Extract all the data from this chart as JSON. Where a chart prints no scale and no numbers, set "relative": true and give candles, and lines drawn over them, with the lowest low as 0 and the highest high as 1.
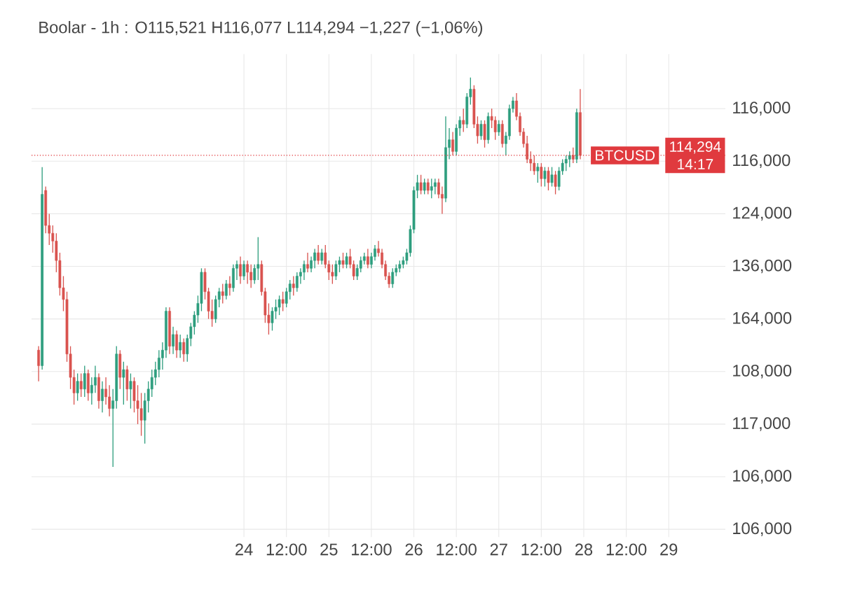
{
  "chart_data": {
    "type": "candlestick",
    "relative": true,
    "title": "Boolar - 1h : O115,521 H116,077 L114,294 −1,227 (−1,06%)",
    "categories": [
      null,
      null,
      null,
      null,
      null,
      null,
      null,
      null,
      null,
      null,
      null,
      null,
      null,
      null,
      null,
      null,
      null,
      null,
      null,
      null,
      null,
      null,
      null,
      null,
      null,
      null,
      null,
      null,
      null,
      null,
      null,
      null,
      null,
      null,
      null,
      null,
      null,
      null,
      null,
      null,
      null,
      null,
      null,
      null,
      null,
      null,
      null,
      null,
      null,
      null,
      null,
      null,
      null,
      null,
      null,
      null,
      null,
      null,
      "24",
      null,
      null,
      null,
      null,
      null,
      null,
      null,
      null,
      null,
      null,
      null,
      "12:00",
      null,
      null,
      null,
      null,
      null,
      null,
      null,
      null,
      null,
      null,
      null,
      "25",
      null,
      null,
      null,
      null,
      null,
      null,
      null,
      null,
      null,
      null,
      null,
      "12:00",
      null,
      null,
      null,
      null,
      null,
      null,
      null,
      null,
      null,
      null,
      null,
      "26",
      null,
      null,
      null,
      null,
      null,
      null,
      null,
      null,
      null,
      null,
      null,
      "12:00",
      null,
      null,
      null,
      null,
      null,
      null,
      null,
      null,
      null,
      null,
      null,
      "27",
      null,
      null,
      null,
      null,
      null,
      null,
      null,
      null,
      null,
      null,
      null,
      "12:00",
      null,
      null,
      null,
      null,
      null,
      null,
      null,
      null,
      null,
      null,
      null,
      "28",
      null,
      null,
      null,
      null,
      null,
      null,
      null,
      null,
      null,
      null,
      null,
      "12:00",
      null,
      null,
      null,
      null,
      null,
      null,
      null,
      null,
      null,
      null,
      null,
      "29"
    ],
    "ohlc": [
      [
        0.3,
        0.31,
        0.22,
        0.26
      ],
      [
        0.26,
        0.77,
        0.25,
        0.7
      ],
      [
        0.71,
        0.72,
        0.6,
        0.62
      ],
      [
        0.62,
        0.65,
        0.57,
        0.6
      ],
      [
        0.6,
        0.62,
        0.55,
        0.58
      ],
      [
        0.58,
        0.6,
        0.5,
        0.53
      ],
      [
        0.53,
        0.55,
        0.44,
        0.46
      ],
      [
        0.46,
        0.49,
        0.4,
        0.43
      ],
      [
        0.43,
        0.45,
        0.27,
        0.29
      ],
      [
        0.29,
        0.31,
        0.2,
        0.23
      ],
      [
        0.23,
        0.25,
        0.16,
        0.19
      ],
      [
        0.19,
        0.24,
        0.17,
        0.22
      ],
      [
        0.22,
        0.24,
        0.18,
        0.2
      ],
      [
        0.2,
        0.26,
        0.18,
        0.24
      ],
      [
        0.24,
        0.25,
        0.17,
        0.19
      ],
      [
        0.19,
        0.23,
        0.16,
        0.21
      ],
      [
        0.21,
        0.26,
        0.19,
        0.23
      ],
      [
        0.23,
        0.24,
        0.15,
        0.17
      ],
      [
        0.17,
        0.22,
        0.14,
        0.2
      ],
      [
        0.2,
        0.23,
        0.16,
        0.18
      ],
      [
        0.18,
        0.21,
        0.13,
        0.15
      ],
      [
        0.15,
        0.2,
        0.0,
        0.17
      ],
      [
        0.17,
        0.31,
        0.15,
        0.29
      ],
      [
        0.29,
        0.3,
        0.2,
        0.23
      ],
      [
        0.23,
        0.27,
        0.16,
        0.25
      ],
      [
        0.25,
        0.26,
        0.17,
        0.2
      ],
      [
        0.2,
        0.24,
        0.15,
        0.22
      ],
      [
        0.22,
        0.23,
        0.14,
        0.17
      ],
      [
        0.17,
        0.21,
        0.11,
        0.15
      ],
      [
        0.15,
        0.19,
        0.08,
        0.12
      ],
      [
        0.12,
        0.19,
        0.06,
        0.17
      ],
      [
        0.17,
        0.22,
        0.14,
        0.2
      ],
      [
        0.2,
        0.25,
        0.18,
        0.23
      ],
      [
        0.23,
        0.27,
        0.21,
        0.25
      ],
      [
        0.25,
        0.3,
        0.23,
        0.28
      ],
      [
        0.28,
        0.32,
        0.25,
        0.3
      ],
      [
        0.3,
        0.41,
        0.28,
        0.4
      ],
      [
        0.4,
        0.41,
        0.29,
        0.31
      ],
      [
        0.31,
        0.36,
        0.29,
        0.34
      ],
      [
        0.34,
        0.35,
        0.28,
        0.3
      ],
      [
        0.3,
        0.34,
        0.28,
        0.32
      ],
      [
        0.32,
        0.33,
        0.27,
        0.29
      ],
      [
        0.29,
        0.34,
        0.27,
        0.33
      ],
      [
        0.33,
        0.37,
        0.31,
        0.36
      ],
      [
        0.36,
        0.4,
        0.34,
        0.39
      ],
      [
        0.39,
        0.44,
        0.37,
        0.42
      ],
      [
        0.42,
        0.51,
        0.4,
        0.5
      ],
      [
        0.5,
        0.51,
        0.43,
        0.45
      ],
      [
        0.45,
        0.46,
        0.38,
        0.4
      ],
      [
        0.4,
        0.43,
        0.36,
        0.38
      ],
      [
        0.38,
        0.44,
        0.37,
        0.43
      ],
      [
        0.43,
        0.46,
        0.41,
        0.45
      ],
      [
        0.45,
        0.47,
        0.42,
        0.44
      ],
      [
        0.44,
        0.48,
        0.43,
        0.47
      ],
      [
        0.47,
        0.49,
        0.44,
        0.46
      ],
      [
        0.46,
        0.52,
        0.45,
        0.51
      ],
      [
        0.51,
        0.53,
        0.48,
        0.52
      ],
      [
        0.52,
        0.54,
        0.47,
        0.49
      ],
      [
        0.49,
        0.53,
        0.48,
        0.52
      ],
      [
        0.52,
        0.53,
        0.47,
        0.5
      ],
      [
        0.5,
        0.52,
        0.46,
        0.48
      ],
      [
        0.48,
        0.52,
        0.47,
        0.51
      ],
      [
        0.51,
        0.59,
        0.48,
        0.52
      ],
      [
        0.52,
        0.53,
        0.44,
        0.45
      ],
      [
        0.45,
        0.46,
        0.37,
        0.39
      ],
      [
        0.39,
        0.42,
        0.34,
        0.37
      ],
      [
        0.37,
        0.41,
        0.35,
        0.4
      ],
      [
        0.4,
        0.43,
        0.38,
        0.41
      ],
      [
        0.41,
        0.44,
        0.39,
        0.43
      ],
      [
        0.43,
        0.45,
        0.4,
        0.42
      ],
      [
        0.42,
        0.46,
        0.41,
        0.45
      ],
      [
        0.45,
        0.48,
        0.43,
        0.47
      ],
      [
        0.47,
        0.49,
        0.44,
        0.46
      ],
      [
        0.46,
        0.5,
        0.45,
        0.49
      ],
      [
        0.49,
        0.51,
        0.47,
        0.5
      ],
      [
        0.5,
        0.53,
        0.48,
        0.52
      ],
      [
        0.52,
        0.55,
        0.5,
        0.51
      ],
      [
        0.51,
        0.54,
        0.5,
        0.53
      ],
      [
        0.53,
        0.56,
        0.51,
        0.55
      ],
      [
        0.55,
        0.57,
        0.52,
        0.53
      ],
      [
        0.53,
        0.56,
        0.52,
        0.55
      ],
      [
        0.55,
        0.57,
        0.51,
        0.52
      ],
      [
        0.52,
        0.53,
        0.48,
        0.5
      ],
      [
        0.5,
        0.52,
        0.47,
        0.49
      ],
      [
        0.49,
        0.53,
        0.48,
        0.52
      ],
      [
        0.52,
        0.54,
        0.5,
        0.53
      ],
      [
        0.53,
        0.55,
        0.51,
        0.52
      ],
      [
        0.52,
        0.55,
        0.51,
        0.54
      ],
      [
        0.54,
        0.56,
        0.51,
        0.52
      ],
      [
        0.52,
        0.53,
        0.48,
        0.49
      ],
      [
        0.49,
        0.52,
        0.48,
        0.51
      ],
      [
        0.51,
        0.54,
        0.5,
        0.53
      ],
      [
        0.53,
        0.55,
        0.52,
        0.54
      ],
      [
        0.54,
        0.56,
        0.51,
        0.52
      ],
      [
        0.52,
        0.55,
        0.51,
        0.54
      ],
      [
        0.54,
        0.57,
        0.53,
        0.56
      ],
      [
        0.56,
        0.58,
        0.54,
        0.55
      ],
      [
        0.55,
        0.56,
        0.51,
        0.52
      ],
      [
        0.52,
        0.53,
        0.48,
        0.49
      ],
      [
        0.49,
        0.5,
        0.46,
        0.47
      ],
      [
        0.47,
        0.51,
        0.46,
        0.5
      ],
      [
        0.5,
        0.52,
        0.49,
        0.51
      ],
      [
        0.51,
        0.53,
        0.5,
        0.52
      ],
      [
        0.52,
        0.54,
        0.51,
        0.53
      ],
      [
        0.53,
        0.56,
        0.52,
        0.55
      ],
      [
        0.55,
        0.62,
        0.54,
        0.61
      ],
      [
        0.61,
        0.72,
        0.6,
        0.71
      ],
      [
        0.71,
        0.75,
        0.69,
        0.73
      ],
      [
        0.73,
        0.75,
        0.7,
        0.71
      ],
      [
        0.71,
        0.74,
        0.7,
        0.73
      ],
      [
        0.73,
        0.74,
        0.7,
        0.71
      ],
      [
        0.71,
        0.74,
        0.69,
        0.72
      ],
      [
        0.72,
        0.74,
        0.7,
        0.73
      ],
      [
        0.73,
        0.74,
        0.69,
        0.7
      ],
      [
        0.7,
        0.72,
        0.65,
        0.69
      ],
      [
        0.69,
        0.9,
        0.68,
        0.82
      ],
      [
        0.82,
        0.87,
        0.79,
        0.84
      ],
      [
        0.84,
        0.86,
        0.8,
        0.81
      ],
      [
        0.81,
        0.88,
        0.8,
        0.87
      ],
      [
        0.87,
        0.9,
        0.85,
        0.89
      ],
      [
        0.89,
        0.92,
        0.86,
        0.88
      ],
      [
        0.88,
        0.96,
        0.87,
        0.95
      ],
      [
        0.95,
        1.0,
        0.93,
        0.97
      ],
      [
        0.97,
        0.98,
        0.87,
        0.88
      ],
      [
        0.88,
        0.9,
        0.83,
        0.85
      ],
      [
        0.85,
        0.89,
        0.84,
        0.88
      ],
      [
        0.88,
        0.89,
        0.82,
        0.84
      ],
      [
        0.84,
        0.91,
        0.83,
        0.9
      ],
      [
        0.9,
        0.92,
        0.87,
        0.89
      ],
      [
        0.89,
        0.9,
        0.84,
        0.86
      ],
      [
        0.86,
        0.89,
        0.85,
        0.88
      ],
      [
        0.88,
        0.89,
        0.82,
        0.83
      ],
      [
        0.83,
        0.86,
        0.8,
        0.85
      ],
      [
        0.85,
        0.93,
        0.84,
        0.92
      ],
      [
        0.92,
        0.95,
        0.91,
        0.94
      ],
      [
        0.94,
        0.96,
        0.89,
        0.9
      ],
      [
        0.9,
        0.91,
        0.85,
        0.86
      ],
      [
        0.86,
        0.87,
        0.82,
        0.83
      ],
      [
        0.83,
        0.85,
        0.78,
        0.79
      ],
      [
        0.79,
        0.81,
        0.76,
        0.78
      ],
      [
        0.78,
        0.8,
        0.75,
        0.76
      ],
      [
        0.76,
        0.78,
        0.73,
        0.77
      ],
      [
        0.77,
        0.78,
        0.72,
        0.74
      ],
      [
        0.74,
        0.77,
        0.72,
        0.76
      ],
      [
        0.76,
        0.77,
        0.71,
        0.73
      ],
      [
        0.73,
        0.77,
        0.72,
        0.75
      ],
      [
        0.75,
        0.76,
        0.7,
        0.72
      ],
      [
        0.72,
        0.77,
        0.71,
        0.76
      ],
      [
        0.76,
        0.79,
        0.75,
        0.78
      ],
      [
        0.78,
        0.8,
        0.76,
        0.79
      ],
      [
        0.79,
        0.81,
        0.77,
        0.8
      ],
      [
        0.8,
        0.82,
        0.78,
        0.79
      ],
      [
        0.79,
        0.92,
        0.78,
        0.91
      ],
      [
        0.91,
        0.97,
        0.79,
        0.8
      ],
      null,
      null,
      null,
      null,
      null,
      null,
      null,
      null,
      null,
      null,
      null,
      null,
      null,
      null,
      null,
      null,
      null,
      null,
      null,
      null,
      null,
      null,
      null,
      null,
      null
    ],
    "grid": true,
    "ref_lines": [
      {
        "axis": "y",
        "value": 0.8,
        "color": "#e03a3e",
        "line_style": "dotted"
      }
    ],
    "annotations": [
      "BTCUSD",
      "114,294",
      "14:17",
      "116,000",
      "116,000",
      "124,000",
      "136,000",
      "164,000",
      "108,000",
      "117,000",
      "106,000",
      "106,000"
    ]
  }
}
